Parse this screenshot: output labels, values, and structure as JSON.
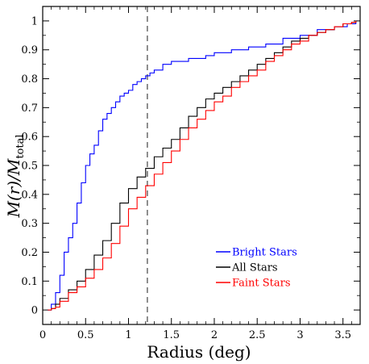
{
  "chart_data": {
    "type": "line",
    "xlabel": "Radius (deg)",
    "ylabel": {
      "main": "M(r)/M",
      "subscript": "total"
    },
    "xlim": [
      0,
      3.7
    ],
    "ylim": [
      -0.05,
      1.05
    ],
    "xticks": [
      0,
      0.5,
      1,
      1.5,
      2,
      2.5,
      3,
      3.5
    ],
    "xtick_labels": [
      "0",
      "0.5",
      "1",
      "1.5",
      "2",
      "2.5",
      "3",
      "3.5"
    ],
    "yticks": [
      0,
      0.1,
      0.2,
      0.3,
      0.4,
      0.5,
      0.6,
      0.7,
      0.8,
      0.9,
      1
    ],
    "ytick_labels": [
      "0",
      "0.1",
      "0.2",
      "0.3",
      "0.4",
      "0.5",
      "0.6",
      "0.7",
      "0.8",
      "0.9",
      "1"
    ],
    "vline": 1.22,
    "legend_position": "lower-right",
    "series": [
      {
        "name": "Bright Stars",
        "color": "#0000ff",
        "x": [
          0.06,
          0.1,
          0.15,
          0.2,
          0.25,
          0.3,
          0.35,
          0.4,
          0.45,
          0.5,
          0.55,
          0.6,
          0.65,
          0.7,
          0.75,
          0.8,
          0.85,
          0.9,
          0.95,
          1.0,
          1.05,
          1.1,
          1.15,
          1.2,
          1.25,
          1.3,
          1.4,
          1.5,
          1.6,
          1.7,
          1.8,
          1.9,
          2.0,
          2.2,
          2.4,
          2.6,
          2.8,
          3.0,
          3.2,
          3.4,
          3.55,
          3.65
        ],
        "y": [
          0.0,
          0.02,
          0.06,
          0.12,
          0.2,
          0.25,
          0.3,
          0.37,
          0.44,
          0.5,
          0.54,
          0.57,
          0.62,
          0.66,
          0.68,
          0.7,
          0.72,
          0.74,
          0.75,
          0.76,
          0.78,
          0.79,
          0.8,
          0.81,
          0.82,
          0.83,
          0.85,
          0.86,
          0.86,
          0.87,
          0.87,
          0.88,
          0.89,
          0.9,
          0.91,
          0.92,
          0.94,
          0.95,
          0.97,
          0.98,
          0.99,
          1.0
        ]
      },
      {
        "name": "All Stars",
        "color": "#000000",
        "x": [
          0.06,
          0.1,
          0.15,
          0.2,
          0.3,
          0.4,
          0.5,
          0.6,
          0.7,
          0.8,
          0.9,
          1.0,
          1.1,
          1.2,
          1.3,
          1.4,
          1.5,
          1.6,
          1.7,
          1.8,
          1.9,
          2.0,
          2.1,
          2.2,
          2.3,
          2.4,
          2.5,
          2.6,
          2.7,
          2.8,
          2.9,
          3.0,
          3.1,
          3.2,
          3.3,
          3.4,
          3.5,
          3.6,
          3.65
        ],
        "y": [
          0.0,
          0.005,
          0.02,
          0.04,
          0.07,
          0.1,
          0.14,
          0.19,
          0.24,
          0.3,
          0.37,
          0.42,
          0.46,
          0.49,
          0.53,
          0.56,
          0.59,
          0.63,
          0.67,
          0.7,
          0.73,
          0.75,
          0.77,
          0.79,
          0.81,
          0.83,
          0.85,
          0.87,
          0.89,
          0.91,
          0.93,
          0.94,
          0.95,
          0.96,
          0.97,
          0.98,
          0.99,
          0.995,
          1.0
        ]
      },
      {
        "name": "Faint Stars",
        "color": "#ff0000",
        "x": [
          0.06,
          0.1,
          0.15,
          0.2,
          0.3,
          0.4,
          0.5,
          0.6,
          0.7,
          0.8,
          0.9,
          1.0,
          1.1,
          1.2,
          1.3,
          1.4,
          1.5,
          1.6,
          1.7,
          1.8,
          1.9,
          2.0,
          2.1,
          2.2,
          2.3,
          2.4,
          2.5,
          2.6,
          2.7,
          2.8,
          2.9,
          3.0,
          3.1,
          3.2,
          3.3,
          3.4,
          3.5,
          3.6,
          3.65
        ],
        "y": [
          0.0,
          0.005,
          0.01,
          0.03,
          0.06,
          0.08,
          0.11,
          0.14,
          0.18,
          0.23,
          0.29,
          0.35,
          0.39,
          0.43,
          0.47,
          0.51,
          0.55,
          0.59,
          0.63,
          0.66,
          0.69,
          0.72,
          0.74,
          0.77,
          0.79,
          0.81,
          0.83,
          0.86,
          0.88,
          0.9,
          0.92,
          0.93,
          0.95,
          0.96,
          0.97,
          0.98,
          0.99,
          0.995,
          1.0
        ]
      }
    ]
  }
}
